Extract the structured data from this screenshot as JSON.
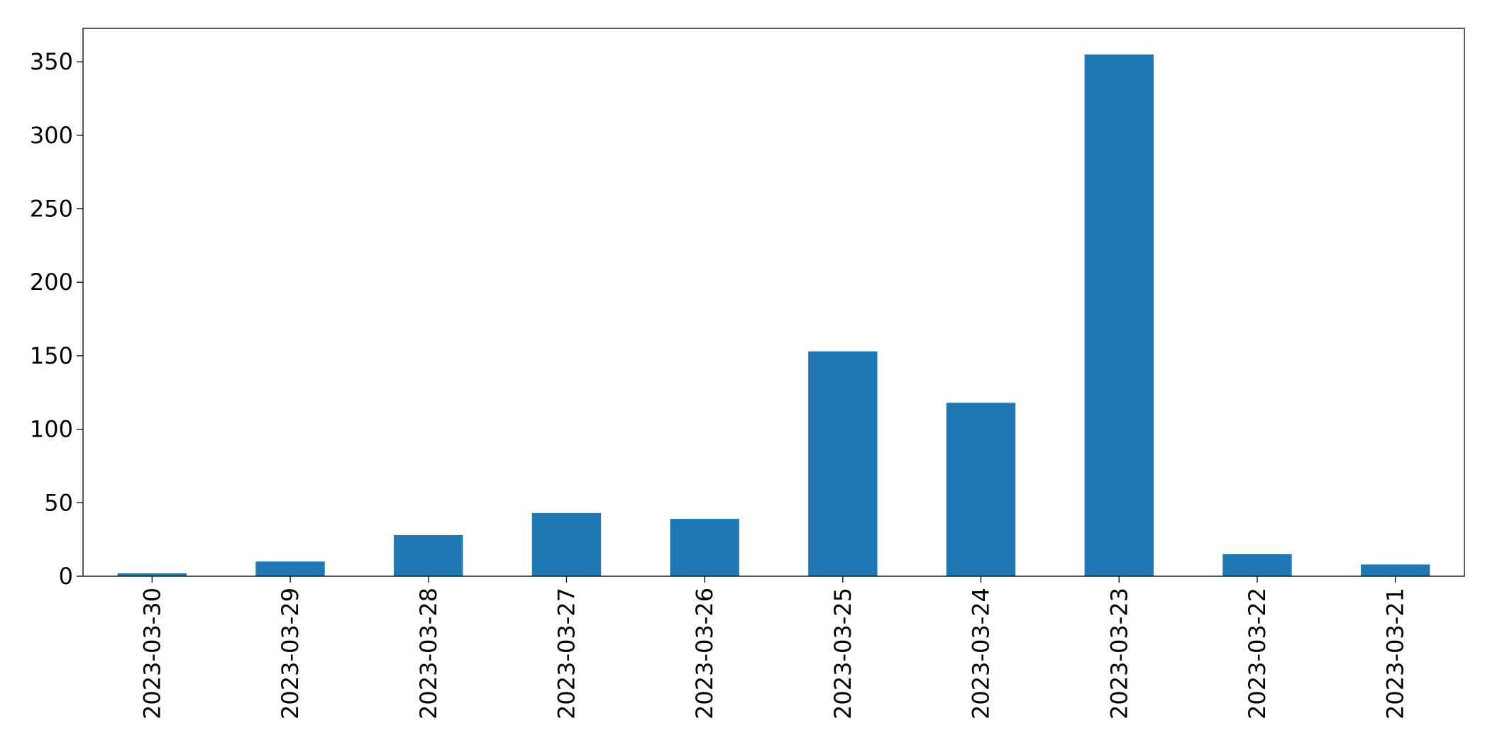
{
  "chart_data": {
    "type": "bar",
    "categories": [
      "2023-03-30",
      "2023-03-29",
      "2023-03-28",
      "2023-03-27",
      "2023-03-26",
      "2023-03-25",
      "2023-03-24",
      "2023-03-23",
      "2023-03-22",
      "2023-03-21"
    ],
    "values": [
      2,
      10,
      28,
      43,
      39,
      153,
      118,
      355,
      15,
      8
    ],
    "color": "#1f77b4",
    "ylim": [
      0,
      372.75
    ],
    "yticks": [
      0,
      50,
      100,
      150,
      200,
      250,
      300,
      350
    ]
  }
}
